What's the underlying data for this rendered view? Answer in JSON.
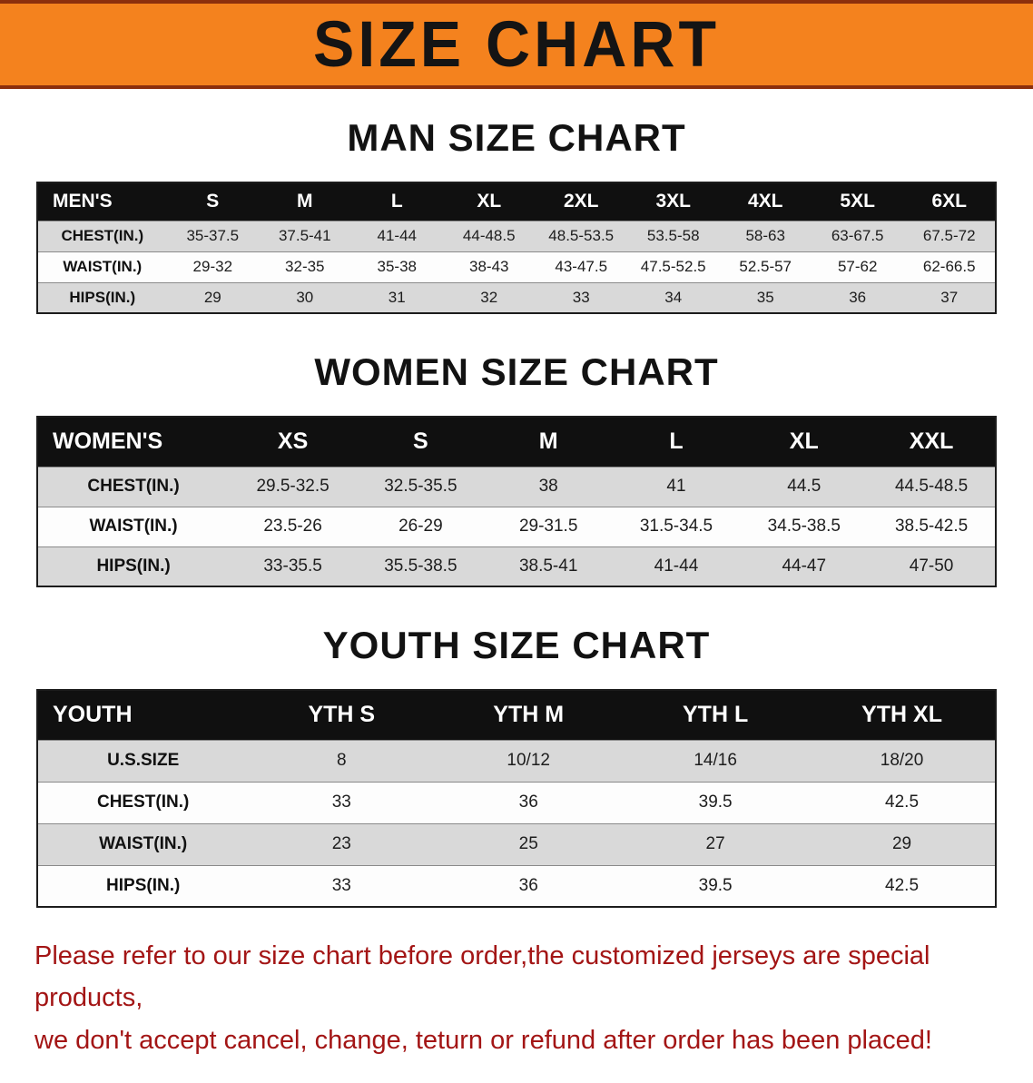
{
  "banner": {
    "title": "SIZE CHART",
    "bg_color": "#f4821e",
    "border_color": "#8c2f0c"
  },
  "sections": [
    {
      "id": "men",
      "heading": "MAN SIZE CHART",
      "table": {
        "header": [
          "MEN'S",
          "S",
          "M",
          "L",
          "XL",
          "2XL",
          "3XL",
          "4XL",
          "5XL",
          "6XL"
        ],
        "rows": [
          [
            "CHEST(IN.)",
            "35-37.5",
            "37.5-41",
            "41-44",
            "44-48.5",
            "48.5-53.5",
            "53.5-58",
            "58-63",
            "63-67.5",
            "67.5-72"
          ],
          [
            "WAIST(IN.)",
            "29-32",
            "32-35",
            "35-38",
            "38-43",
            "43-47.5",
            "47.5-52.5",
            "52.5-57",
            "57-62",
            "62-66.5"
          ],
          [
            "HIPS(IN.)",
            "29",
            "30",
            "31",
            "32",
            "33",
            "34",
            "35",
            "36",
            "37"
          ]
        ]
      }
    },
    {
      "id": "women",
      "heading": "WOMEN SIZE CHART",
      "table": {
        "header": [
          "WOMEN'S",
          "XS",
          "S",
          "M",
          "L",
          "XL",
          "XXL"
        ],
        "rows": [
          [
            "CHEST(IN.)",
            "29.5-32.5",
            "32.5-35.5",
            "38",
            "41",
            "44.5",
            "44.5-48.5"
          ],
          [
            "WAIST(IN.)",
            "23.5-26",
            "26-29",
            "29-31.5",
            "31.5-34.5",
            "34.5-38.5",
            "38.5-42.5"
          ],
          [
            "HIPS(IN.)",
            "33-35.5",
            "35.5-38.5",
            "38.5-41",
            "41-44",
            "44-47",
            "47-50"
          ]
        ]
      }
    },
    {
      "id": "youth",
      "heading": "YOUTH SIZE CHART",
      "table": {
        "header": [
          "YOUTH",
          "YTH S",
          "YTH M",
          "YTH L",
          "YTH XL"
        ],
        "rows": [
          [
            "U.S.SIZE",
            "8",
            "10/12",
            "14/16",
            "18/20"
          ],
          [
            "CHEST(IN.)",
            "33",
            "36",
            "39.5",
            "42.5"
          ],
          [
            "WAIST(IN.)",
            "23",
            "25",
            "27",
            "29"
          ],
          [
            "HIPS(IN.)",
            "33",
            "36",
            "39.5",
            "42.5"
          ]
        ]
      }
    }
  ],
  "footer": {
    "line1": "Please refer to our size chart before order,the customized jerseys are special products,",
    "line2": "we don't accept cancel, change, teturn or refund after order has been placed!",
    "text_color": "#a31515"
  }
}
